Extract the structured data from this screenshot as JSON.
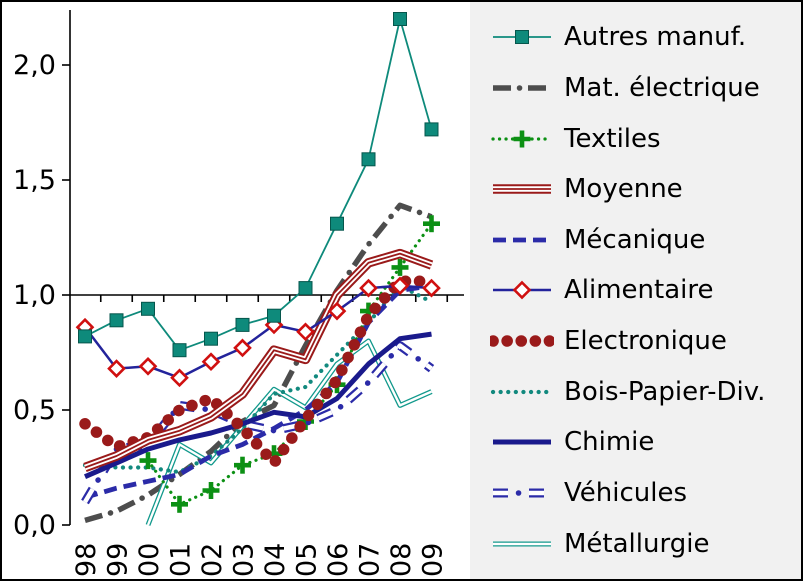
{
  "window": {
    "background": "#FFFFFF",
    "legend_background": "#F1F1F1",
    "border_color": "#000000"
  },
  "chart_data": {
    "type": "line",
    "title": "",
    "x_categories": [
      "98",
      "99",
      "00",
      "01",
      "02",
      "03",
      "04",
      "05",
      "06",
      "07",
      "08",
      "09"
    ],
    "y_tick_labels": [
      "0,0",
      "0,5",
      "1,0",
      "1,5",
      "2,0"
    ],
    "y_tick_values": [
      0,
      0.5,
      1.0,
      1.5,
      2.0
    ],
    "ylim": [
      0,
      2.24
    ],
    "x_axis_position": 1.0,
    "grid": false,
    "legend_position": "right",
    "series": [
      {
        "name": "Autres manuf.",
        "color": "#0E8A7B",
        "style": "solid-square",
        "marker": "square",
        "values": [
          0.82,
          0.89,
          0.94,
          0.76,
          0.81,
          0.87,
          0.91,
          1.03,
          1.31,
          1.59,
          2.2,
          1.72
        ]
      },
      {
        "name": "Mat. électrique",
        "color": "#4D4D4D",
        "style": "thick-dashdot",
        "marker": "none",
        "values": [
          0.02,
          0.06,
          0.13,
          0.22,
          0.32,
          0.45,
          0.52,
          0.78,
          1.02,
          1.22,
          1.39,
          1.34
        ]
      },
      {
        "name": "Textiles",
        "color": "#0C9014",
        "style": "dotted-plus",
        "marker": "plus",
        "values": [
          null,
          null,
          0.28,
          0.09,
          0.15,
          0.26,
          0.31,
          0.45,
          0.61,
          0.93,
          1.12,
          1.31
        ]
      },
      {
        "name": "Moyenne",
        "color": "#9A1A1A",
        "style": "tube-thick",
        "marker": "none",
        "values": [
          0.25,
          0.3,
          0.37,
          0.41,
          0.47,
          0.57,
          0.76,
          0.72,
          1.0,
          1.14,
          1.18,
          1.13
        ]
      },
      {
        "name": "Mécanique",
        "color": "#2B2BA8",
        "style": "dashed",
        "marker": "none",
        "values": [
          0.12,
          0.16,
          0.19,
          0.22,
          0.3,
          0.35,
          0.42,
          0.5,
          0.62,
          0.88,
          1.02,
          1.04
        ]
      },
      {
        "name": "Alimentaire",
        "color": "#23239B",
        "style": "thin-line",
        "marker": "diamond",
        "marker_color": "#D01010",
        "values": [
          0.86,
          0.68,
          0.69,
          0.64,
          0.71,
          0.77,
          0.87,
          0.84,
          0.93,
          1.03,
          1.04,
          1.03
        ]
      },
      {
        "name": "Electronique",
        "color": "#9A1A1A",
        "style": "big-dots",
        "marker": "none",
        "values": [
          0.44,
          0.34,
          0.38,
          0.5,
          0.55,
          0.42,
          0.27,
          0.46,
          0.63,
          0.91,
          1.06,
          1.06
        ]
      },
      {
        "name": "Bois-Papier-Div.",
        "color": "#12897E",
        "style": "small-dots",
        "marker": "none",
        "values": [
          0.26,
          0.25,
          0.25,
          0.23,
          0.3,
          0.42,
          0.57,
          0.6,
          0.74,
          0.88,
          1.04,
          0.97
        ]
      },
      {
        "name": "Chimie",
        "color": "#1A1A8C",
        "style": "thick-solid",
        "marker": "none",
        "values": [
          0.21,
          0.27,
          0.33,
          0.37,
          0.4,
          0.44,
          0.49,
          0.47,
          0.55,
          0.7,
          0.81,
          0.83
        ]
      },
      {
        "name": "Véhicules",
        "color": "#2B2BA8",
        "style": "tube-dashdot",
        "marker": "none",
        "values": [
          0.1,
          0.33,
          0.35,
          0.52,
          0.5,
          0.44,
          0.41,
          0.44,
          0.5,
          0.62,
          0.78,
          0.68
        ]
      },
      {
        "name": "Métallurgie",
        "color": "#12998C",
        "style": "tube-thin",
        "marker": "none",
        "values": [
          null,
          null,
          0.0,
          0.35,
          0.27,
          0.43,
          0.59,
          0.51,
          0.7,
          0.8,
          0.52,
          0.58
        ]
      }
    ]
  }
}
